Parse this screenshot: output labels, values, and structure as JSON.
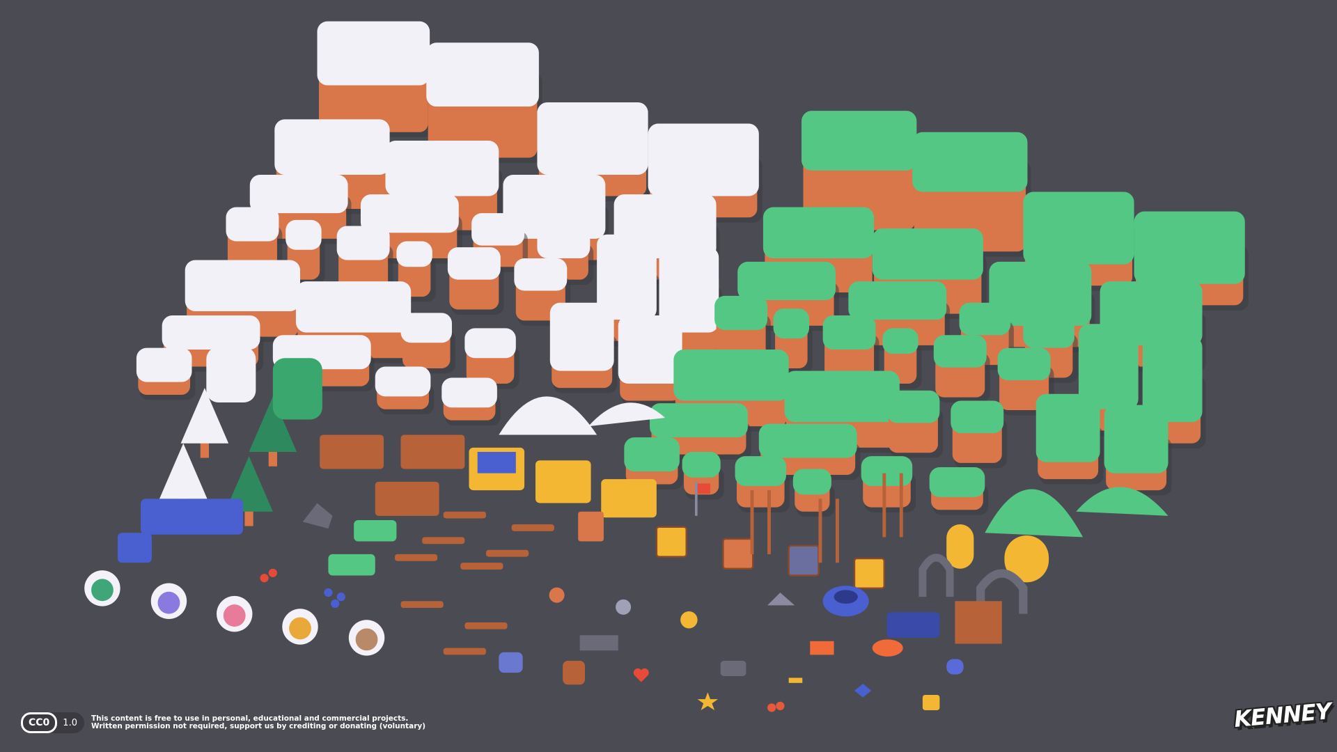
{
  "colors": {
    "background": "#4b4b53",
    "snow": "#f3f1f8",
    "grass": "#55c785",
    "dirt": "#d9774a",
    "wood": "#b8623a",
    "gold": "#f4b733",
    "blue": "#4a5fd0"
  },
  "license": {
    "badge": "CC0",
    "version": "1.0",
    "line1": "This content is free to use in personal, educational and commercial projects.",
    "line2": "Written permission not required, support us by crediting or donating (voluntary)"
  },
  "logo": "KENNEY"
}
